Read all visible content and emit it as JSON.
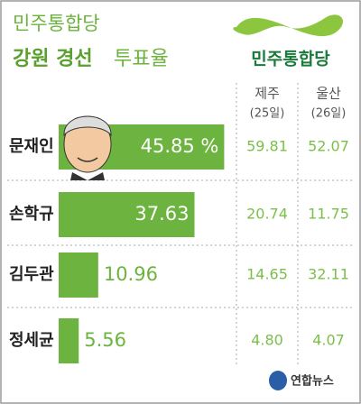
{
  "chart_data": {
    "type": "bar",
    "party": "민주통합당",
    "title": "강원 경선",
    "subtitle": "투표율",
    "logo": "민주통합당",
    "categories": [
      "문재인",
      "손학규",
      "김두관",
      "정세균"
    ],
    "series": [
      {
        "name": "강원",
        "color": "#6cb33f",
        "values": [
          45.85,
          37.63,
          10.96,
          5.56
        ],
        "value_labels": [
          "45.85 %",
          "37.63",
          "10.96",
          "5.56"
        ]
      },
      {
        "name": "제주",
        "date": "(25일)",
        "values": [
          59.81,
          20.74,
          14.65,
          4.8
        ],
        "value_labels": [
          "59.81",
          "20.74",
          "14.65",
          "4.80"
        ]
      },
      {
        "name": "울산",
        "date": "(26일)",
        "values": [
          52.07,
          11.75,
          32.11,
          4.07
        ],
        "value_labels": [
          "52.07",
          "11.75",
          "32.11",
          "4.07"
        ]
      }
    ],
    "xlim": [
      0,
      50
    ],
    "source": "연합뉴스"
  }
}
